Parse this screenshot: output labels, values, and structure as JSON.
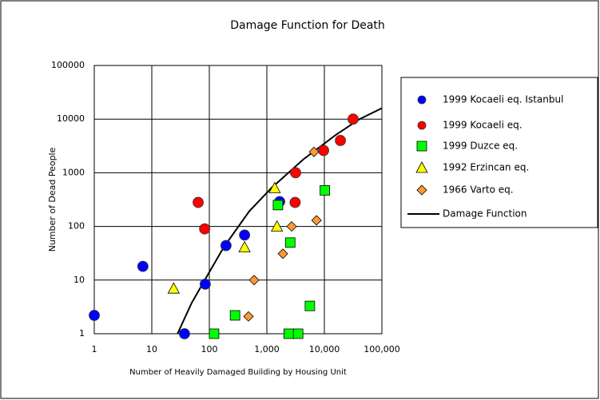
{
  "chart_data": {
    "type": "scatter",
    "title": "Damage Function for Death",
    "x_label": "Number of Heavily Damaged Building by Housing Unit",
    "y_label": "Number of Dead People",
    "log_x": true,
    "log_y": true,
    "grid": true,
    "legend": "right",
    "xlim": [
      1,
      100000
    ],
    "xticks": [
      1,
      10,
      100,
      {
        "value": 1000,
        "label": "1,000"
      },
      {
        "value": 10000,
        "label": "10,000"
      },
      {
        "value": 100000,
        "label": "100,000"
      }
    ],
    "ylim": [
      1,
      100000
    ],
    "yticks": [
      1,
      10,
      100,
      1000,
      10000,
      100000
    ],
    "series": [
      {
        "name": "1999 Kocaeli eq. Istanbul",
        "marker": "circle",
        "color": "#0000ff",
        "x": [
          1,
          7,
          37,
          85,
          195,
          410,
          1670
        ],
        "y": [
          2.2,
          18,
          1,
          8.4,
          44,
          69,
          290
        ]
      },
      {
        "name": "1999 Kocaeli eq.",
        "marker": "circle",
        "color": "#ff0000",
        "x": [
          64,
          83,
          3160,
          3100,
          9700,
          19000,
          31600
        ],
        "y": [
          280,
          90,
          1000,
          280,
          2600,
          4000,
          10000
        ]
      },
      {
        "name": "1999 Duzce eq.",
        "marker": "square",
        "color": "#00ff00",
        "x": [
          121,
          280,
          1560,
          2550,
          2400,
          3500,
          5600,
          10200
        ],
        "y": [
          1,
          2.2,
          250,
          50,
          1,
          1,
          3.3,
          470
        ]
      },
      {
        "name": "1992 Erzincan eq.",
        "marker": "triangle",
        "color": "#ffff00",
        "x": [
          24,
          410,
          1370,
          1500
        ],
        "y": [
          7,
          41,
          520,
          100
        ]
      },
      {
        "name": "1966 Varto eq.",
        "marker": "diamond",
        "color": "#ff9933",
        "x": [
          480,
          600,
          1900,
          2700,
          6600,
          7300
        ],
        "y": [
          2.1,
          10,
          31,
          100,
          2450,
          130
        ]
      },
      {
        "name": "Damage Function",
        "marker": "line",
        "color": "#000000",
        "x": [
          28,
          49,
          85,
          178,
          495,
          1200,
          4370,
          15500,
          40800,
          100000
        ],
        "y": [
          1,
          3.7,
          10.4,
          41,
          192,
          520,
          1800,
          5000,
          10000,
          16000
        ]
      }
    ]
  }
}
